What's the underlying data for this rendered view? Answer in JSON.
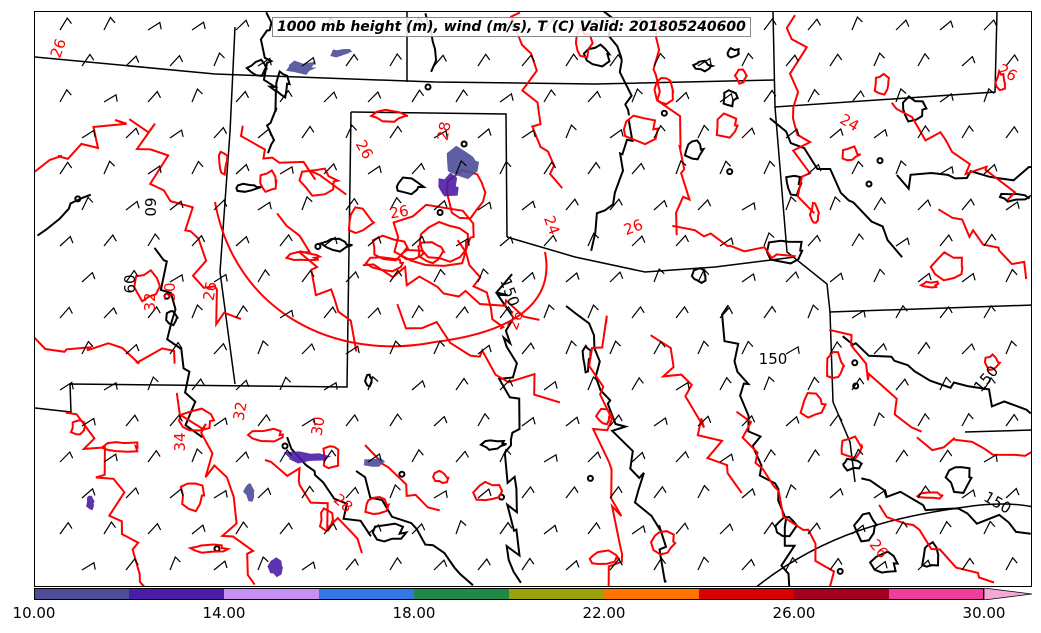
{
  "title": "1000 mb height (m), wind (m/s), T (C) Valid: 201805240600",
  "colorbar": {
    "colors": [
      "#4d4d99",
      "#4b1da6",
      "#c690f2",
      "#3377e6",
      "#1f8a45",
      "#9aa20d",
      "#ff7400",
      "#d60000",
      "#a3001e",
      "#f03d9b",
      "#f6a7d4"
    ],
    "ticks": [
      "10.00",
      "14.00",
      "18.00",
      "22.00",
      "26.00",
      "30.00"
    ]
  },
  "contour_labels": {
    "temperature": [
      "26",
      "28",
      "26",
      "26",
      "24",
      "26",
      "24",
      "26",
      "26",
      "32",
      "34",
      "30",
      "28",
      "26",
      "32",
      "30",
      "26"
    ],
    "height": [
      "60",
      "60",
      "150",
      "150",
      "150",
      "150"
    ]
  },
  "colors": {
    "temperature_contour": "#ff0000",
    "height_contour": "#000000",
    "borders": "#000000"
  }
}
